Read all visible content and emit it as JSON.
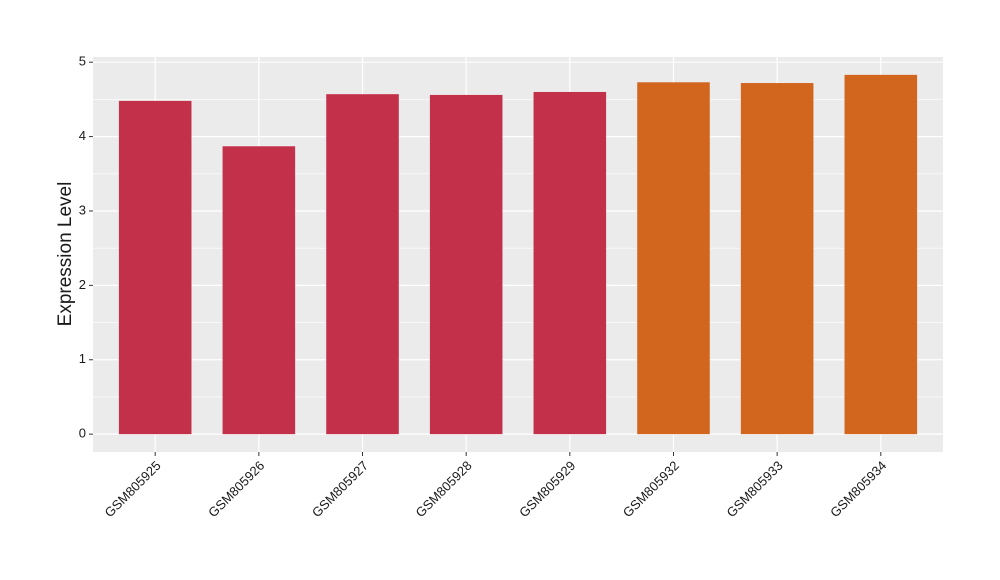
{
  "chart_data": {
    "type": "bar",
    "y_label": "Expression Level",
    "categories": [
      "GSM805925",
      "GSM805926",
      "GSM805927",
      "GSM805928",
      "GSM805929",
      "GSM805932",
      "GSM805933",
      "GSM805934"
    ],
    "values": [
      4.48,
      3.87,
      4.57,
      4.56,
      4.6,
      4.73,
      4.72,
      4.83
    ],
    "colors": [
      "#c3304a",
      "#c3304a",
      "#c3304a",
      "#c3304a",
      "#c3304a",
      "#d2661f",
      "#d2661f",
      "#d2661f"
    ],
    "ylim": [
      -0.24,
      5.07
    ],
    "yticks": [
      0,
      1,
      2,
      3,
      4,
      5
    ],
    "grid": true
  }
}
